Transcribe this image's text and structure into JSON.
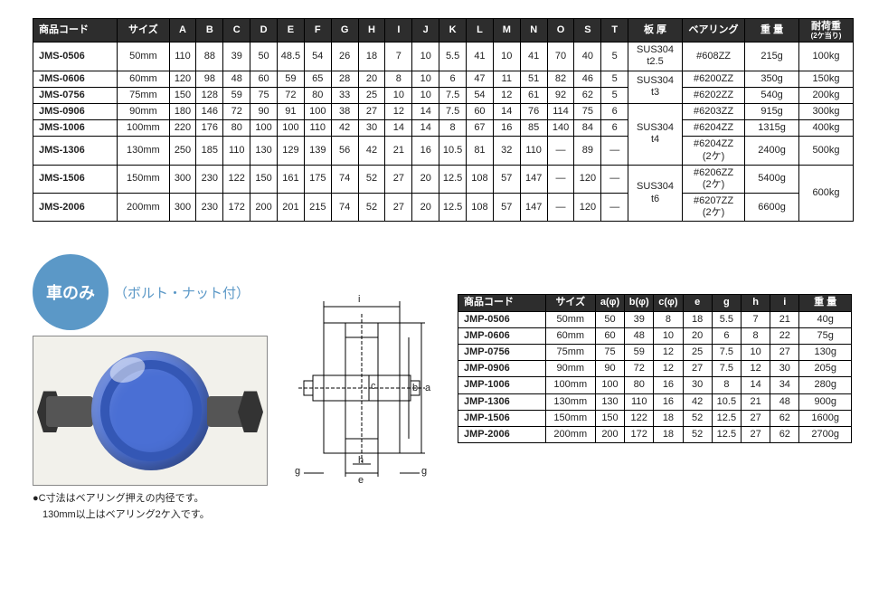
{
  "table1": {
    "headers": [
      "商品コード",
      "サイズ",
      "A",
      "B",
      "C",
      "D",
      "E",
      "F",
      "G",
      "H",
      "I",
      "J",
      "K",
      "L",
      "M",
      "N",
      "O",
      "S",
      "T",
      "板 厚",
      "ベアリング",
      "重 量",
      "耐荷重"
    ],
    "load_sub": "(2ケ当り)",
    "thick_cells": [
      {
        "text": "SUS304\nt2.5",
        "rows": 1
      },
      {
        "text": "SUS304\nt3",
        "rows": 2
      },
      {
        "text": "SUS304\nt4",
        "rows": 3
      },
      {
        "text": "SUS304\nt6",
        "rows": 2
      }
    ],
    "load_cells": [
      {
        "text": "100kg",
        "rows": 1
      },
      {
        "text": "150kg",
        "rows": 1
      },
      {
        "text": "200kg",
        "rows": 1
      },
      {
        "text": "300kg",
        "rows": 1
      },
      {
        "text": "400kg",
        "rows": 1
      },
      {
        "text": "500kg",
        "rows": 1
      },
      {
        "text": "600kg",
        "rows": 2
      }
    ],
    "rows": [
      {
        "code": "JMS-0506",
        "size": "50mm",
        "d": [
          "110",
          "88",
          "39",
          "50",
          "48.5",
          "54",
          "26",
          "18",
          "7",
          "10",
          "5.5",
          "41",
          "10",
          "41",
          "70",
          "40",
          "5"
        ],
        "bearing": "#608ZZ",
        "weight": "215g"
      },
      {
        "code": "JMS-0606",
        "size": "60mm",
        "d": [
          "120",
          "98",
          "48",
          "60",
          "59",
          "65",
          "28",
          "20",
          "8",
          "10",
          "6",
          "47",
          "11",
          "51",
          "82",
          "46",
          "5"
        ],
        "bearing": "#6200ZZ",
        "weight": "350g"
      },
      {
        "code": "JMS-0756",
        "size": "75mm",
        "d": [
          "150",
          "128",
          "59",
          "75",
          "72",
          "80",
          "33",
          "25",
          "10",
          "10",
          "7.5",
          "54",
          "12",
          "61",
          "92",
          "62",
          "5"
        ],
        "bearing": "#6202ZZ",
        "weight": "540g"
      },
      {
        "code": "JMS-0906",
        "size": "90mm",
        "d": [
          "180",
          "146",
          "72",
          "90",
          "91",
          "100",
          "38",
          "27",
          "12",
          "14",
          "7.5",
          "60",
          "14",
          "76",
          "114",
          "75",
          "6"
        ],
        "bearing": "#6203ZZ",
        "weight": "915g"
      },
      {
        "code": "JMS-1006",
        "size": "100mm",
        "d": [
          "220",
          "176",
          "80",
          "100",
          "100",
          "110",
          "42",
          "30",
          "14",
          "14",
          "8",
          "67",
          "16",
          "85",
          "140",
          "84",
          "6"
        ],
        "bearing": "#6204ZZ",
        "weight": "1315g"
      },
      {
        "code": "JMS-1306",
        "size": "130mm",
        "d": [
          "250",
          "185",
          "110",
          "130",
          "129",
          "139",
          "56",
          "42",
          "21",
          "16",
          "10.5",
          "81",
          "32",
          "110",
          "—",
          "89",
          "—"
        ],
        "bearing": "#6204ZZ\n(2ケ)",
        "weight": "2400g"
      },
      {
        "code": "JMS-1506",
        "size": "150mm",
        "d": [
          "300",
          "230",
          "122",
          "150",
          "161",
          "175",
          "74",
          "52",
          "27",
          "20",
          "12.5",
          "108",
          "57",
          "147",
          "—",
          "120",
          "—"
        ],
        "bearing": "#6206ZZ\n(2ケ)",
        "weight": "5400g"
      },
      {
        "code": "JMS-2006",
        "size": "200mm",
        "d": [
          "300",
          "230",
          "172",
          "200",
          "201",
          "215",
          "74",
          "52",
          "27",
          "20",
          "12.5",
          "108",
          "57",
          "147",
          "—",
          "120",
          "—"
        ],
        "bearing": "#6207ZZ\n(2ケ)",
        "weight": "6600g"
      }
    ]
  },
  "section2": {
    "badge": "車のみ",
    "badge_sub": "（ボルト・ナット付）",
    "note1": "●C寸法はベアリング押えの内径です。",
    "note2": "　130mm以上はベアリング2ケ入です。",
    "diagram_labels": {
      "i": "i",
      "a": "a",
      "b": "b",
      "c": "c",
      "e": "e",
      "g1": "g",
      "g2": "g",
      "h": "h"
    }
  },
  "table2": {
    "headers": [
      "商品コード",
      "サイズ",
      "a(φ)",
      "b(φ)",
      "c(φ)",
      "e",
      "g",
      "h",
      "i",
      "重 量"
    ],
    "rows": [
      {
        "code": "JMP-0506",
        "size": "50mm",
        "d": [
          "50",
          "39",
          "8",
          "18",
          "5.5",
          "7",
          "21"
        ],
        "weight": "40g"
      },
      {
        "code": "JMP-0606",
        "size": "60mm",
        "d": [
          "60",
          "48",
          "10",
          "20",
          "6",
          "8",
          "22"
        ],
        "weight": "75g"
      },
      {
        "code": "JMP-0756",
        "size": "75mm",
        "d": [
          "75",
          "59",
          "12",
          "25",
          "7.5",
          "10",
          "27"
        ],
        "weight": "130g"
      },
      {
        "code": "JMP-0906",
        "size": "90mm",
        "d": [
          "90",
          "72",
          "12",
          "27",
          "7.5",
          "12",
          "30"
        ],
        "weight": "205g"
      },
      {
        "code": "JMP-1006",
        "size": "100mm",
        "d": [
          "100",
          "80",
          "16",
          "30",
          "8",
          "14",
          "34"
        ],
        "weight": "280g"
      },
      {
        "code": "JMP-1306",
        "size": "130mm",
        "d": [
          "130",
          "110",
          "16",
          "42",
          "10.5",
          "21",
          "48"
        ],
        "weight": "900g"
      },
      {
        "code": "JMP-1506",
        "size": "150mm",
        "d": [
          "150",
          "122",
          "18",
          "52",
          "12.5",
          "27",
          "62"
        ],
        "weight": "1600g"
      },
      {
        "code": "JMP-2006",
        "size": "200mm",
        "d": [
          "200",
          "172",
          "18",
          "52",
          "12.5",
          "27",
          "62"
        ],
        "weight": "2700g"
      }
    ]
  },
  "colors": {
    "header_bg": "#2d2d2d",
    "header_fg": "#ffffff",
    "badge": "#5b98c7",
    "wheel": "#4a6fd4"
  }
}
